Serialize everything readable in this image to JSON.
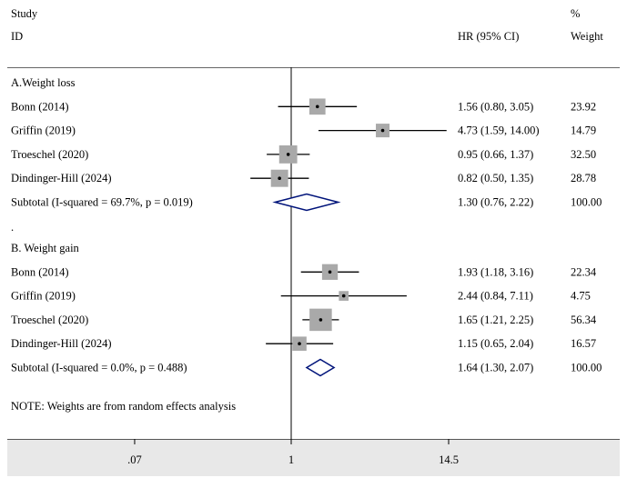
{
  "header": {
    "study_label": "Study",
    "id_label": "ID",
    "hr_label": "HR (95% CI)",
    "pct_label": "%",
    "weight_label": "Weight"
  },
  "note": "NOTE: Weights are from random effects analysis",
  "separator": ".",
  "chart_data": {
    "type": "forest",
    "scale": "log",
    "reference_line": 1,
    "x_ticks": [
      {
        "value": 0.07,
        "label": ".07"
      },
      {
        "value": 1,
        "label": "1"
      },
      {
        "value": 14.5,
        "label": "14.5"
      }
    ],
    "groups": [
      {
        "title": "A.Weight loss",
        "studies": [
          {
            "name": "Bonn (2014)",
            "hr": 1.56,
            "lower": 0.8,
            "upper": 3.05,
            "ci_text": "1.56 (0.80, 3.05)",
            "weight": "23.92"
          },
          {
            "name": "Griffin  (2019)",
            "hr": 4.73,
            "lower": 1.59,
            "upper": 14.0,
            "ci_text": "4.73 (1.59, 14.00)",
            "weight": "14.79"
          },
          {
            "name": "Troeschel  (2020)",
            "hr": 0.95,
            "lower": 0.66,
            "upper": 1.37,
            "ci_text": "0.95 (0.66, 1.37)",
            "weight": "32.50"
          },
          {
            "name": "Dindinger-Hill (2024)",
            "hr": 0.82,
            "lower": 0.5,
            "upper": 1.35,
            "ci_text": "0.82 (0.50, 1.35)",
            "weight": "28.78"
          }
        ],
        "subtotal": {
          "label": "Subtotal  (I-squared = 69.7%, p = 0.019)",
          "hr": 1.3,
          "lower": 0.76,
          "upper": 2.22,
          "ci_text": "1.30 (0.76, 2.22)",
          "weight": "100.00"
        }
      },
      {
        "title": "B. Weight gain",
        "studies": [
          {
            "name": "Bonn (2014)",
            "hr": 1.93,
            "lower": 1.18,
            "upper": 3.16,
            "ci_text": "1.93 (1.18, 3.16)",
            "weight": "22.34"
          },
          {
            "name": "Griffin  (2019)",
            "hr": 2.44,
            "lower": 0.84,
            "upper": 7.11,
            "ci_text": "2.44 (0.84, 7.11)",
            "weight": "4.75"
          },
          {
            "name": "Troeschel  (2020)",
            "hr": 1.65,
            "lower": 1.21,
            "upper": 2.25,
            "ci_text": "1.65 (1.21, 2.25)",
            "weight": "56.34"
          },
          {
            "name": "Dindinger-Hill (2024)",
            "hr": 1.15,
            "lower": 0.65,
            "upper": 2.04,
            "ci_text": "1.15 (0.65, 2.04)",
            "weight": "16.57"
          }
        ],
        "subtotal": {
          "label": "Subtotal  (I-squared = 0.0%, p = 0.488)",
          "hr": 1.64,
          "lower": 1.3,
          "upper": 2.07,
          "ci_text": "1.64 (1.30, 2.07)",
          "weight": "100.00"
        }
      }
    ]
  }
}
